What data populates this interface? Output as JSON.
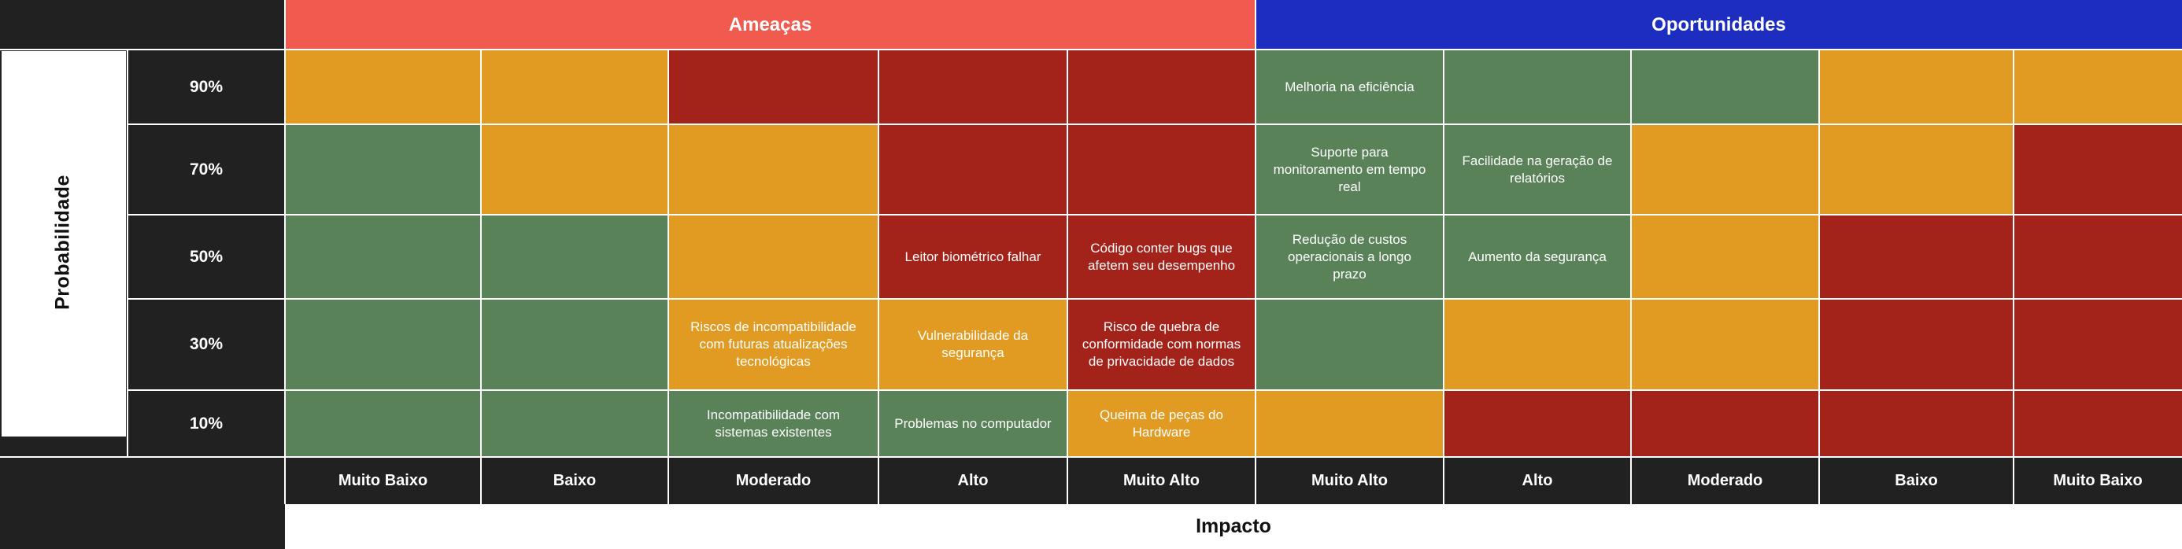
{
  "colors": {
    "dark": "#212121",
    "threat_header": "#F05A4F",
    "opportunity_header": "#1C2DC0",
    "green": "#5A8259",
    "orange": "#E19B22",
    "red": "#A3221A"
  },
  "headers": {
    "threats": "Ameaças",
    "opportunities": "Oportunidades"
  },
  "axis": {
    "y": "Probabilidade",
    "x": "Impacto"
  },
  "row_labels": [
    "90%",
    "70%",
    "50%",
    "30%",
    "10%"
  ],
  "column_labels": [
    "Muito Baixo",
    "Baixo",
    "Moderado",
    "Alto",
    "Muito Alto",
    "Muito Alto",
    "Alto",
    "Moderado",
    "Baixo",
    "Muito Baixo"
  ],
  "grid": [
    [
      {
        "color": "orange",
        "text": ""
      },
      {
        "color": "orange",
        "text": ""
      },
      {
        "color": "red",
        "text": ""
      },
      {
        "color": "red",
        "text": ""
      },
      {
        "color": "red",
        "text": ""
      },
      {
        "color": "green",
        "text": "Melhoria na eficiência"
      },
      {
        "color": "green",
        "text": ""
      },
      {
        "color": "green",
        "text": ""
      },
      {
        "color": "orange",
        "text": ""
      },
      {
        "color": "orange",
        "text": ""
      }
    ],
    [
      {
        "color": "green",
        "text": ""
      },
      {
        "color": "orange",
        "text": ""
      },
      {
        "color": "orange",
        "text": ""
      },
      {
        "color": "red",
        "text": ""
      },
      {
        "color": "red",
        "text": ""
      },
      {
        "color": "green",
        "text": "Suporte para monitoramento em tempo real"
      },
      {
        "color": "green",
        "text": "Facilidade na geração de relatórios"
      },
      {
        "color": "orange",
        "text": ""
      },
      {
        "color": "orange",
        "text": ""
      },
      {
        "color": "red",
        "text": ""
      }
    ],
    [
      {
        "color": "green",
        "text": ""
      },
      {
        "color": "green",
        "text": ""
      },
      {
        "color": "orange",
        "text": ""
      },
      {
        "color": "red",
        "text": "Leitor biométrico falhar"
      },
      {
        "color": "red",
        "text": "Código conter bugs que afetem seu desempenho"
      },
      {
        "color": "green",
        "text": "Redução de custos operacionais a longo prazo"
      },
      {
        "color": "green",
        "text": "Aumento da segurança"
      },
      {
        "color": "orange",
        "text": ""
      },
      {
        "color": "red",
        "text": ""
      },
      {
        "color": "red",
        "text": ""
      }
    ],
    [
      {
        "color": "green",
        "text": ""
      },
      {
        "color": "green",
        "text": ""
      },
      {
        "color": "orange",
        "text": "Riscos de incompatibilidade com futuras atualizações tecnológicas"
      },
      {
        "color": "orange",
        "text": "Vulnerabilidade da segurança"
      },
      {
        "color": "red",
        "text": "Risco de quebra de conformidade com normas de privacidade de dados"
      },
      {
        "color": "green",
        "text": ""
      },
      {
        "color": "orange",
        "text": ""
      },
      {
        "color": "orange",
        "text": ""
      },
      {
        "color": "red",
        "text": ""
      },
      {
        "color": "red",
        "text": ""
      }
    ],
    [
      {
        "color": "green",
        "text": ""
      },
      {
        "color": "green",
        "text": ""
      },
      {
        "color": "green",
        "text": "Incompatibilidade com sistemas existentes"
      },
      {
        "color": "green",
        "text": "Problemas no computador"
      },
      {
        "color": "orange",
        "text": "Queima de peças do Hardware"
      },
      {
        "color": "orange",
        "text": ""
      },
      {
        "color": "red",
        "text": ""
      },
      {
        "color": "red",
        "text": ""
      },
      {
        "color": "red",
        "text": ""
      },
      {
        "color": "red",
        "text": ""
      }
    ]
  ]
}
